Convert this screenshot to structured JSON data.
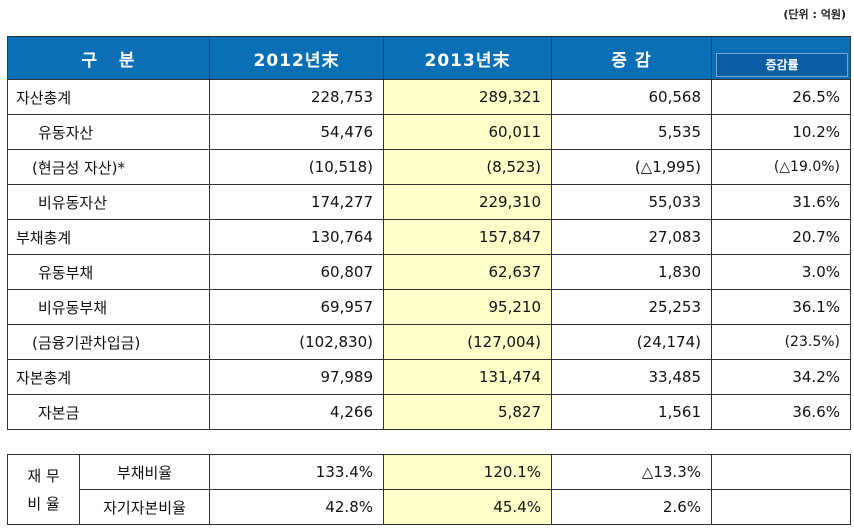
{
  "unit_note": "(단위 : 억원)",
  "headers": {
    "category": "구   분",
    "y2012": "2012년末",
    "y2013": "2013년末",
    "change": "증 감",
    "change_rate": "증감률"
  },
  "rows": [
    {
      "label": "자산총계",
      "y2012": "228,753",
      "y2013": "289,321",
      "change": "60,568",
      "rate": "26.5%"
    },
    {
      "label": "유동자산",
      "y2012": "54,476",
      "y2013": "60,011",
      "change": "5,535",
      "rate": "10.2%"
    },
    {
      "label": "(현금성 자산)*",
      "y2012": "(10,518)",
      "y2013": "(8,523)",
      "change": "(△1,995)",
      "rate": "(△19.0%)"
    },
    {
      "label": "비유동자산",
      "y2012": "174,277",
      "y2013": "229,310",
      "change": "55,033",
      "rate": "31.6%"
    },
    {
      "label": "부채총계",
      "y2012": "130,764",
      "y2013": "157,847",
      "change": "27,083",
      "rate": "20.7%"
    },
    {
      "label": "유동부채",
      "y2012": "60,807",
      "y2013": "62,637",
      "change": "1,830",
      "rate": "3.0%"
    },
    {
      "label": "비유동부채",
      "y2012": "69,957",
      "y2013": "95,210",
      "change": "25,253",
      "rate": "36.1%"
    },
    {
      "label": "(금융기관차입금)",
      "y2012": "(102,830)",
      "y2013": "(127,004)",
      "change": "(24,174)",
      "rate": "(23.5%)"
    },
    {
      "label": "자본총계",
      "y2012": "97,989",
      "y2013": "131,474",
      "change": "33,485",
      "rate": "34.2%"
    },
    {
      "label": "자본금",
      "y2012": "4,266",
      "y2013": "5,827",
      "change": "1,561",
      "rate": "36.6%"
    }
  ],
  "ratio": {
    "category": "재 무\n비 율",
    "rows": [
      {
        "label": "부채비율",
        "y2012": "133.4%",
        "y2013": "120.1%",
        "change": "△13.3%",
        "rate": ""
      },
      {
        "label": "자기자본비율",
        "y2012": "42.8%",
        "y2013": "45.4%",
        "change": "2.6%",
        "rate": ""
      }
    ]
  }
}
